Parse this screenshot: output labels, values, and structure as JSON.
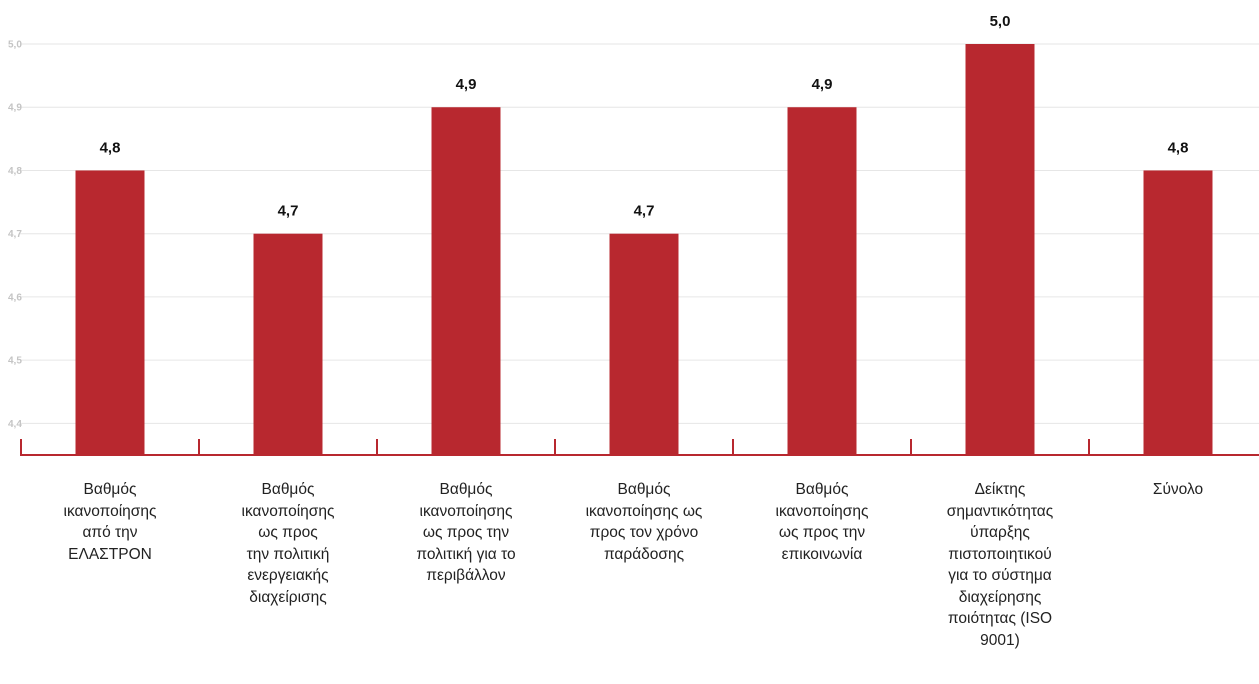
{
  "chart_data": {
    "type": "bar",
    "title": "",
    "xlabel": "",
    "ylabel": "",
    "ylim": [
      4.35,
      5.0
    ],
    "yticks": [
      "4,4",
      "4,5",
      "4,6",
      "4,7",
      "4,8",
      "4,9",
      "5,0"
    ],
    "ytick_values": [
      4.4,
      4.5,
      4.6,
      4.7,
      4.8,
      4.9,
      5.0
    ],
    "grid": true,
    "bar_color": "#b8282f",
    "axis_color": "#b8282f",
    "categories": [
      "Βαθμός\nικανοποίησης\nαπό την\nΕΛΑΣΤΡΟΝ",
      "Βαθμός\nικανοποίησης\nως προς\nτην πολιτική\nενεργειακής\nδιαχείρισης",
      "Βαθμός\nικανοποίησης\nως προς την\nπολιτική για το\nπεριβάλλον",
      "Βαθμός\nικανοποίησης ως\nπρος τον χρόνο\nπαράδοσης",
      "Βαθμός\nικανοποίησης\nως προς την\nεπικοινωνία",
      "Δείκτης\nσημαντικότητας\nύπαρξης\nπιστοποιητικού\nγια το σύστημα\nδιαχείρησης\nποιότητας (ISO\n9001)",
      "Σύνολο"
    ],
    "values": [
      4.8,
      4.7,
      4.9,
      4.7,
      4.9,
      5.0,
      4.8
    ],
    "value_labels": [
      "4,8",
      "4,7",
      "4,9",
      "4,7",
      "4,9",
      "5,0",
      "4,8"
    ]
  }
}
